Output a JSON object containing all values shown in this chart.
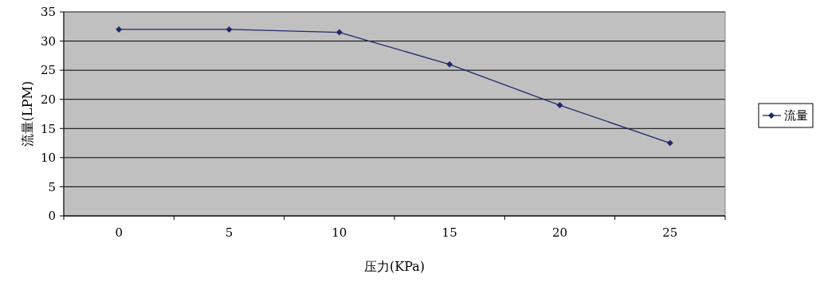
{
  "chart_data": {
    "type": "line",
    "xlabel": "压力(KPa)",
    "ylabel": "流量(LPM)",
    "categories": [
      "0",
      "5",
      "10",
      "15",
      "20",
      "25"
    ],
    "series": [
      {
        "name": "流量",
        "color": "#1f2a6b",
        "values": [
          32,
          32,
          31.5,
          26,
          19,
          12.5
        ]
      }
    ],
    "ylim": [
      0,
      35
    ],
    "yticks": [
      0,
      5,
      10,
      15,
      20,
      25,
      30,
      35
    ],
    "grid": "y",
    "legend": "right",
    "marker": "diamond",
    "line_style": "solid"
  }
}
